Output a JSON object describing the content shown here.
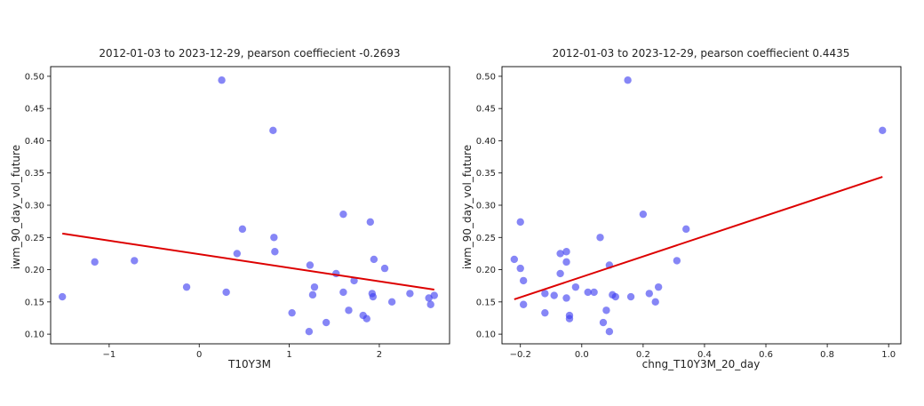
{
  "chart_data": [
    {
      "type": "scatter",
      "title": "2012-01-03 to 2023-12-29, pearson coeffiecient -0.2693",
      "xlabel": "T10Y3M",
      "ylabel": "iwm_90_day_vol_future",
      "xlim": [
        -1.65,
        2.78
      ],
      "ylim": [
        0.085,
        0.515
      ],
      "xticks": [
        -1,
        0,
        1,
        2
      ],
      "xtick_labels": [
        "−1",
        "0",
        "1",
        "2"
      ],
      "yticks": [
        0.1,
        0.15,
        0.2,
        0.25,
        0.3,
        0.35,
        0.4,
        0.45,
        0.5
      ],
      "ytick_labels": [
        "0.10",
        "0.15",
        "0.20",
        "0.25",
        "0.30",
        "0.35",
        "0.40",
        "0.45",
        "0.50"
      ],
      "grid": false,
      "point_color": "#3b3bf0",
      "line_color": "#dd0000",
      "points": [
        [
          -1.52,
          0.158
        ],
        [
          -1.16,
          0.212
        ],
        [
          -0.72,
          0.214
        ],
        [
          -0.14,
          0.173
        ],
        [
          0.25,
          0.494
        ],
        [
          0.3,
          0.165
        ],
        [
          0.42,
          0.225
        ],
        [
          0.48,
          0.263
        ],
        [
          0.82,
          0.416
        ],
        [
          0.83,
          0.25
        ],
        [
          0.84,
          0.228
        ],
        [
          1.03,
          0.133
        ],
        [
          1.22,
          0.104
        ],
        [
          1.23,
          0.207
        ],
        [
          1.26,
          0.161
        ],
        [
          1.28,
          0.173
        ],
        [
          1.41,
          0.118
        ],
        [
          1.52,
          0.194
        ],
        [
          1.6,
          0.286
        ],
        [
          1.6,
          0.165
        ],
        [
          1.66,
          0.137
        ],
        [
          1.72,
          0.183
        ],
        [
          1.82,
          0.129
        ],
        [
          1.86,
          0.124
        ],
        [
          1.9,
          0.274
        ],
        [
          1.92,
          0.163
        ],
        [
          1.93,
          0.158
        ],
        [
          1.94,
          0.216
        ],
        [
          2.06,
          0.202
        ],
        [
          2.14,
          0.15
        ],
        [
          2.34,
          0.163
        ],
        [
          2.55,
          0.156
        ],
        [
          2.57,
          0.146
        ],
        [
          2.61,
          0.16
        ]
      ],
      "fit_line": [
        [
          -1.52,
          0.256
        ],
        [
          2.61,
          0.169
        ]
      ]
    },
    {
      "type": "scatter",
      "title": "2012-01-03 to 2023-12-29, pearson coeffiecient 0.4435",
      "xlabel": "chng_T10Y3M_20_day",
      "ylabel": "iwm_90_day_vol_future",
      "xlim": [
        -0.26,
        1.04
      ],
      "ylim": [
        0.085,
        0.515
      ],
      "xticks": [
        -0.2,
        0.0,
        0.2,
        0.4,
        0.6,
        0.8,
        1.0
      ],
      "xtick_labels": [
        "−0.2",
        "0.0",
        "0.2",
        "0.4",
        "0.6",
        "0.8",
        "1.0"
      ],
      "yticks": [
        0.1,
        0.15,
        0.2,
        0.25,
        0.3,
        0.35,
        0.4,
        0.45,
        0.5
      ],
      "ytick_labels": [
        "0.10",
        "0.15",
        "0.20",
        "0.25",
        "0.30",
        "0.35",
        "0.40",
        "0.45",
        "0.50"
      ],
      "grid": false,
      "point_color": "#3b3bf0",
      "line_color": "#dd0000",
      "points": [
        [
          -0.22,
          0.216
        ],
        [
          -0.2,
          0.274
        ],
        [
          -0.2,
          0.202
        ],
        [
          -0.19,
          0.183
        ],
        [
          -0.19,
          0.146
        ],
        [
          -0.12,
          0.163
        ],
        [
          -0.12,
          0.133
        ],
        [
          -0.09,
          0.16
        ],
        [
          -0.07,
          0.225
        ],
        [
          -0.07,
          0.194
        ],
        [
          -0.05,
          0.228
        ],
        [
          -0.05,
          0.212
        ],
        [
          -0.05,
          0.156
        ],
        [
          -0.04,
          0.124
        ],
        [
          -0.04,
          0.129
        ],
        [
          -0.02,
          0.173
        ],
        [
          0.02,
          0.165
        ],
        [
          0.04,
          0.165
        ],
        [
          0.06,
          0.25
        ],
        [
          0.07,
          0.118
        ],
        [
          0.08,
          0.137
        ],
        [
          0.09,
          0.104
        ],
        [
          0.09,
          0.207
        ],
        [
          0.1,
          0.161
        ],
        [
          0.11,
          0.158
        ],
        [
          0.15,
          0.494
        ],
        [
          0.16,
          0.158
        ],
        [
          0.2,
          0.286
        ],
        [
          0.22,
          0.163
        ],
        [
          0.24,
          0.15
        ],
        [
          0.25,
          0.173
        ],
        [
          0.31,
          0.214
        ],
        [
          0.34,
          0.263
        ],
        [
          0.98,
          0.416
        ]
      ],
      "fit_line": [
        [
          -0.22,
          0.154
        ],
        [
          0.98,
          0.344
        ]
      ]
    }
  ]
}
